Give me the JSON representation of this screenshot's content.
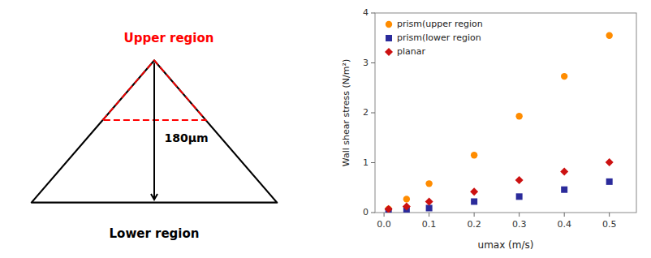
{
  "chart_data": {
    "type": "scatter",
    "xlabel": "umax (m/s)",
    "ylabel": "Wall shear stress (N/m²)",
    "xlim": [
      -0.02,
      0.56
    ],
    "ylim": [
      0,
      4
    ],
    "xticks": [
      {
        "value": 0.0,
        "label": "0.0"
      },
      0.1,
      0.2,
      0.3,
      0.4,
      0.5
    ],
    "yticks": [
      0,
      1,
      2,
      3,
      4
    ],
    "grid": false,
    "legend": "upper left",
    "annotations": [
      "180μm",
      "Upper region",
      "Lower region"
    ],
    "series": [
      {
        "name": "prism(upper region",
        "color": "#FF8C00",
        "marker": "circle",
        "x": [
          0.01,
          0.05,
          0.1,
          0.2,
          0.3,
          0.4,
          0.5
        ],
        "values": [
          0.07,
          0.27,
          0.58,
          1.15,
          1.93,
          2.73,
          3.55
        ]
      },
      {
        "name": "prism(lower region",
        "color": "#2B2B9B",
        "marker": "square",
        "x": [
          0.01,
          0.05,
          0.1,
          0.2,
          0.3,
          0.4,
          0.5
        ],
        "values": [
          0.03,
          0.05,
          0.09,
          0.22,
          0.32,
          0.46,
          0.62
        ]
      },
      {
        "name": "planar",
        "color": "#CC1111",
        "marker": "diamond",
        "x": [
          0.01,
          0.05,
          0.1,
          0.2,
          0.3,
          0.4,
          0.5
        ],
        "values": [
          0.07,
          0.12,
          0.22,
          0.42,
          0.65,
          0.82,
          1.01
        ]
      }
    ]
  }
}
